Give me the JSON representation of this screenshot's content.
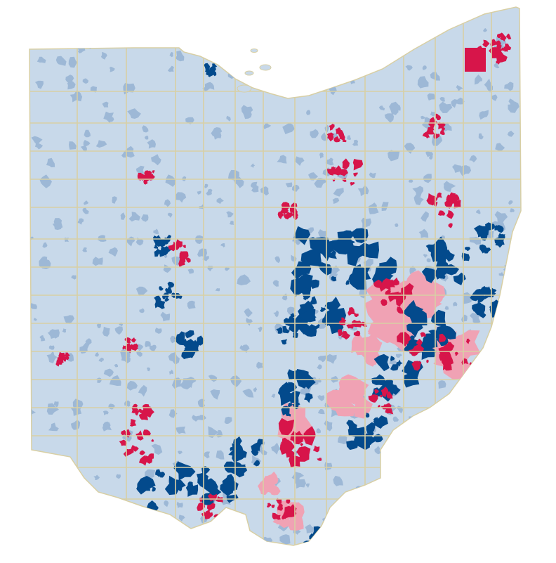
{
  "map": {
    "region": "Ohio",
    "colors": {
      "background": "#ffffff",
      "base": "#c8d9ea",
      "dark_blue": "#034a8c",
      "red": "#d7154a",
      "pink": "#f0a2b4",
      "county_border": "#d8cfa4",
      "texture": "#9db8d6"
    }
  }
}
